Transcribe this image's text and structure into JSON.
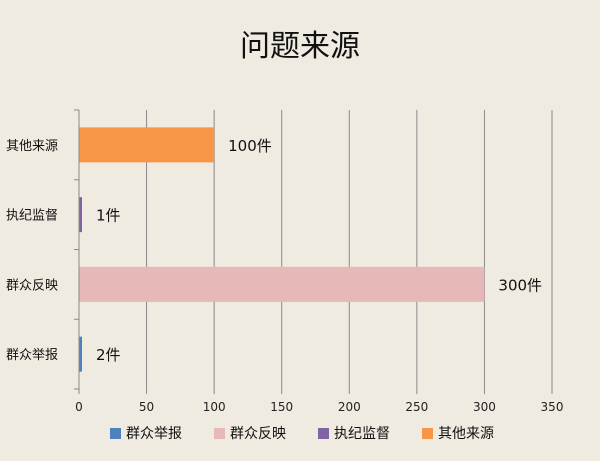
{
  "chart_data": {
    "type": "bar",
    "orientation": "horizontal",
    "title": "问题来源",
    "xlabel": "",
    "ylabel": "",
    "xlim": [
      0,
      350
    ],
    "x_ticks": [
      0,
      50,
      100,
      150,
      200,
      250,
      300,
      350
    ],
    "grid": "vertical",
    "legend_position": "bottom",
    "categories": [
      "群众举报",
      "群众反映",
      "执纪监督",
      "其他来源"
    ],
    "values": [
      2,
      300,
      1,
      100
    ],
    "data_labels": [
      "2件",
      "300件",
      "1件",
      "100件"
    ],
    "colors": [
      "#4f81bd",
      "#e6b9b8",
      "#8064a2",
      "#f79646"
    ],
    "legend": [
      "群众举报",
      "群众反映",
      "执纪监督",
      "其他来源"
    ]
  }
}
